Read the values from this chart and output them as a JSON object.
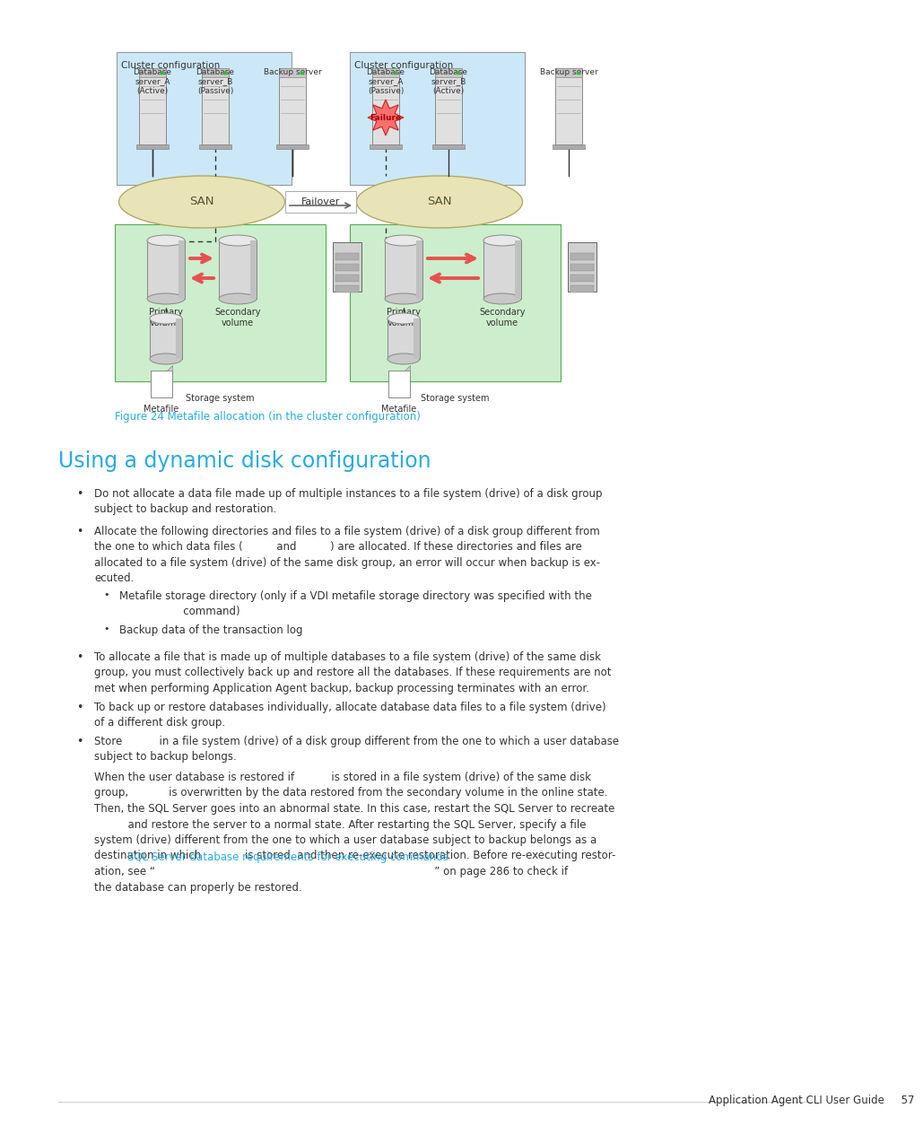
{
  "background_color": "#ffffff",
  "figure_caption": "Figure 24 Metafile allocation (in the cluster configuration)",
  "section_heading": "Using a dynamic disk configuration",
  "section_heading_color": "#29abe2",
  "figure_caption_color": "#29abe2",
  "san_color": "#e8e4b8",
  "cluster_bg_color": "#cce8f8",
  "storage_bg_color": "#cceecc",
  "footer_text": "Application Agent CLI User Guide     57"
}
